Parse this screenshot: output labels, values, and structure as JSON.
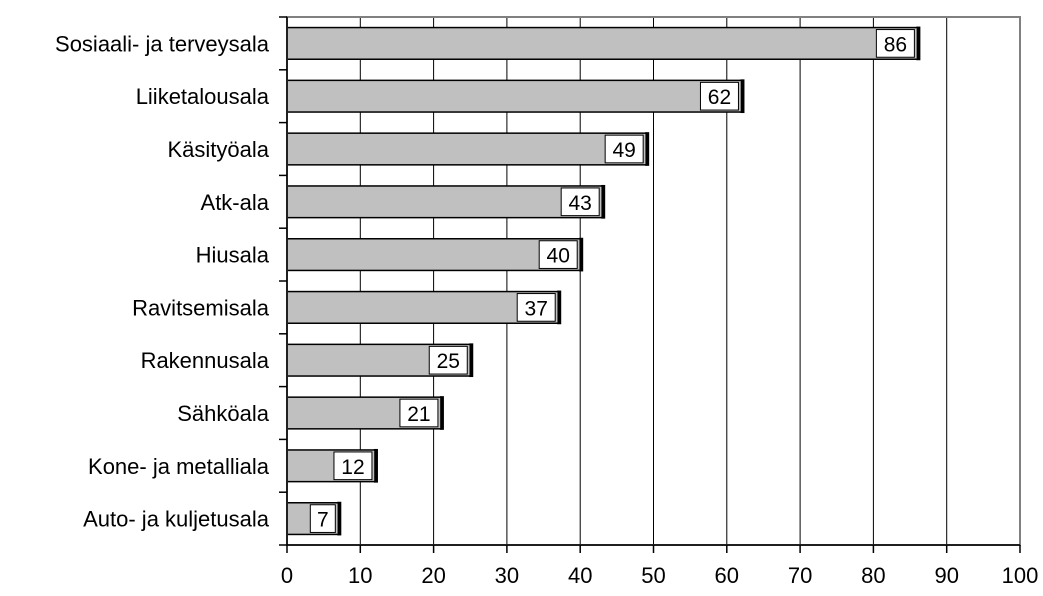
{
  "chart_data": {
    "type": "bar",
    "orientation": "horizontal",
    "categories": [
      "Sosiaali- ja terveysala",
      "Liiketalousala",
      "Käsityöala",
      "Atk-ala",
      "Hiusala",
      "Ravitsemisala",
      "Rakennusala",
      "Sähköala",
      "Kone- ja metalliala",
      "Auto- ja kuljetusala"
    ],
    "values": [
      86,
      62,
      49,
      43,
      40,
      37,
      25,
      21,
      12,
      7
    ],
    "xlim": [
      0,
      100
    ],
    "xticks": [
      0,
      10,
      20,
      30,
      40,
      50,
      60,
      70,
      80,
      90,
      100
    ],
    "grid": "vertical",
    "bar_color": "#c0c0c0",
    "legend": "none"
  }
}
